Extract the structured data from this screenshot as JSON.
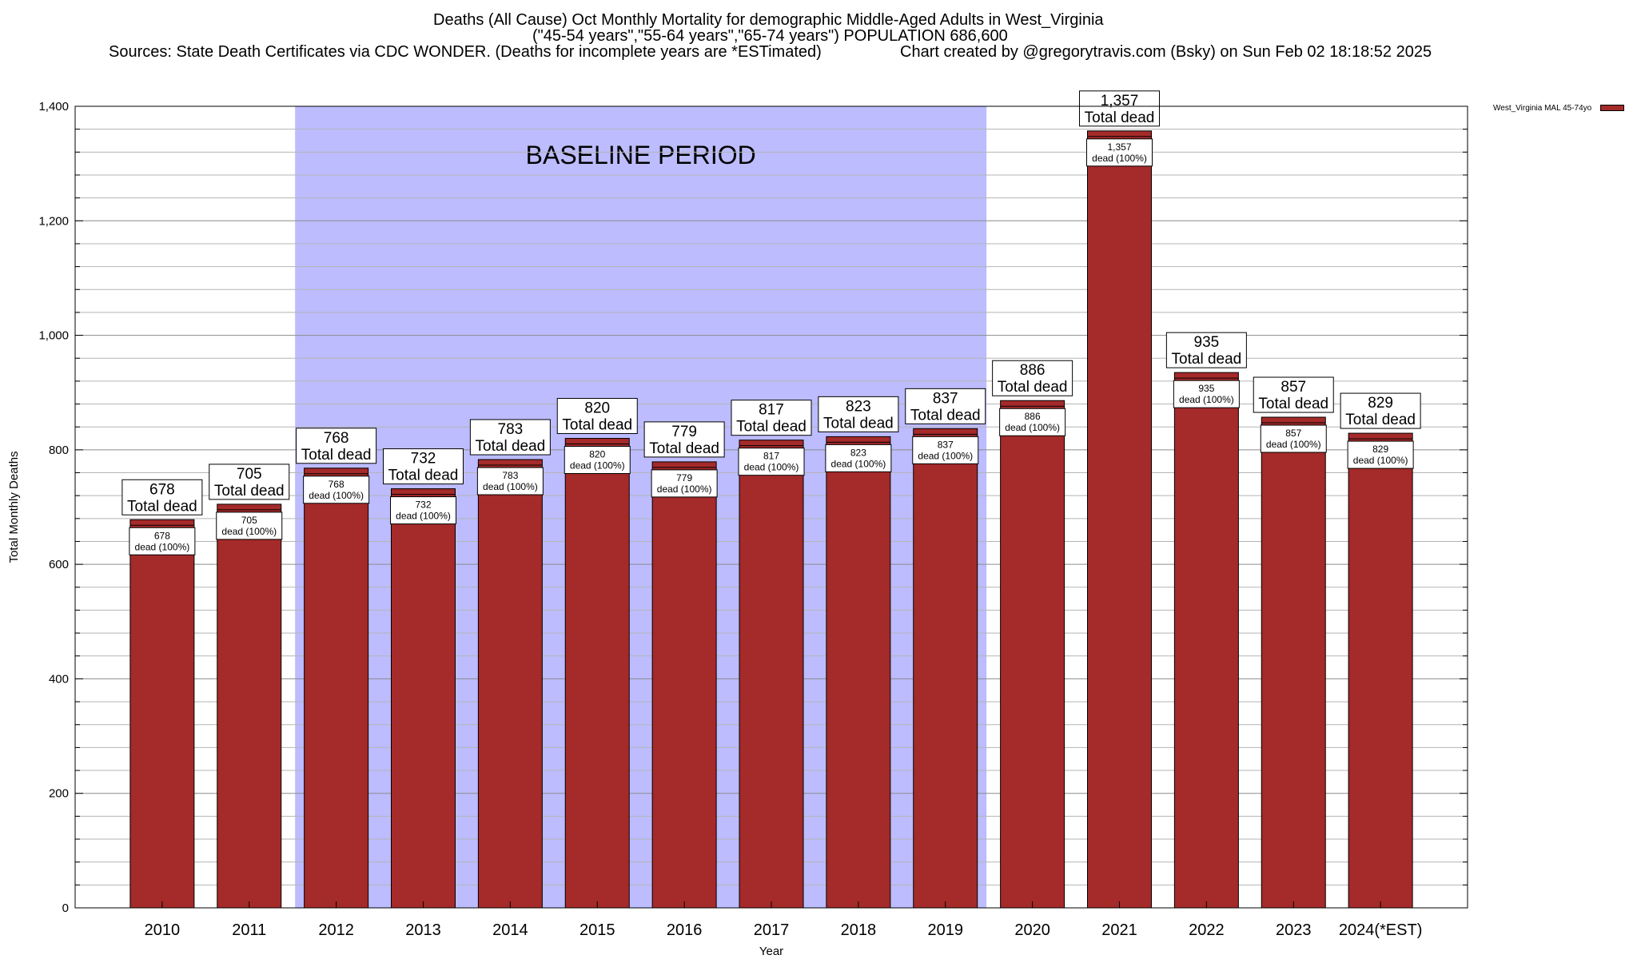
{
  "title": {
    "line1": "Deaths (All Cause) Oct Monthly Mortality for demographic Middle-Aged Adults in West_Virginia",
    "line2": "(\"45-54 years\",\"55-64 years\",\"65-74 years\") POPULATION 686,600",
    "line3a": "Sources: State Death Certificates via CDC WONDER. (Deaths for incomplete years are *ESTimated)",
    "line3b": "Chart created by @gregorytravis.com (Bsky) on Sun Feb 02 18:18:52 2025"
  },
  "legend": {
    "label": "West_Virginia MAL 45-74yo",
    "color": "#A52A2A"
  },
  "chart_data": {
    "type": "bar",
    "title": "Deaths (All Cause) Oct Monthly Mortality for demographic Middle-Aged Adults in West_Virginia",
    "xlabel": "Year",
    "ylabel": "Total Monthly Deaths",
    "ylim": [
      0,
      1400
    ],
    "yticks": [
      0,
      200,
      400,
      600,
      800,
      1000,
      1200,
      1400
    ],
    "ytick_labels": [
      "0",
      "200",
      "400",
      "600",
      "800",
      "1,000",
      "1,200",
      "1,400"
    ],
    "categories": [
      "2010",
      "2011",
      "2012",
      "2013",
      "2014",
      "2015",
      "2016",
      "2017",
      "2018",
      "2019",
      "2020",
      "2021",
      "2022",
      "2023",
      "2024(*EST)"
    ],
    "values": [
      678,
      705,
      768,
      732,
      783,
      820,
      779,
      817,
      823,
      837,
      886,
      1357,
      935,
      857,
      829
    ],
    "value_labels": [
      "678",
      "705",
      "768",
      "732",
      "783",
      "820",
      "779",
      "817",
      "823",
      "837",
      "886",
      "1,357",
      "935",
      "857",
      "829"
    ],
    "top_label_suffix": "Total dead",
    "inner_label_suffix": "dead (100%)",
    "bar_color": "#A52A2A",
    "baseline": {
      "label": "BASELINE PERIOD",
      "from": "2012",
      "to": "2019",
      "color": "#BCBCFF"
    },
    "grid": true,
    "legend_position": "top-right"
  }
}
